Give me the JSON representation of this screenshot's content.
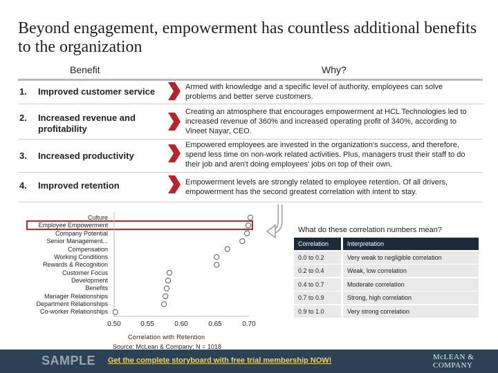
{
  "title": "Beyond engagement, empowerment has countless additional benefits to the organization",
  "headers": {
    "benefit": "Benefit",
    "why": "Why?"
  },
  "benefits": [
    {
      "num": "1.",
      "label": "Improved customer service",
      "why": "Armed with knowledge and a specific level of authority, employees can solve problems and better serve customers."
    },
    {
      "num": "2.",
      "label": "Increased revenue and profitability",
      "why": "Creating an atmosphere that encourages empowerment at HCL Technologies led to increased revenue of 360% and increased operating profit of 340%, according to Vineet Nayar, CEO."
    },
    {
      "num": "3.",
      "label": "Increased productivity",
      "why": "Empowered employees are invested in the organization's success, and therefore, spend less time on non-work related activities. Plus, managers trust their staff to do their job and aren't doing employees' jobs on top of their own."
    },
    {
      "num": "4.",
      "label": "Improved retention",
      "why": "Empowerment levels are strongly related to employee retention. Of all drivers, empowerment has the second greatest correlation with intent to stay."
    }
  ],
  "accent_color": "#b8242b",
  "chart_data": {
    "type": "scatter",
    "categories": [
      "Culture",
      "Employee Empowerment",
      "Company Potential",
      "Senior Management...",
      "Compensation",
      "Working Conditions",
      "Rewards & Recognition",
      "Customer Focus",
      "Development",
      "Benefits",
      "Manager Relationships",
      "Department Relationships",
      "Co-worker Relationships"
    ],
    "values": [
      0.702,
      0.699,
      0.697,
      0.69,
      0.668,
      0.652,
      0.652,
      0.582,
      0.58,
      0.578,
      0.576,
      0.574,
      0.502
    ],
    "xlabel": "Correlation with Retention",
    "xlim": [
      0.5,
      0.7
    ],
    "xticks": [
      "0.50",
      "0.55",
      "0.60",
      "0.65",
      "0.70"
    ],
    "highlighted": "Employee Empowerment",
    "source": "Source: McLean & Company; N = 1018"
  },
  "legend_table": {
    "question": "What do these correlation numbers mean?",
    "headers": [
      "Correlation",
      "Interpretation"
    ],
    "rows": [
      [
        "0.0 to 0.2",
        "Very weak to negligible correlation"
      ],
      [
        "0.2 to 0.4",
        "Weak, low correlation"
      ],
      [
        "0.4 to 0.7",
        "Moderate correlation"
      ],
      [
        "0.7 to 0.9",
        "Strong, high correlation"
      ],
      [
        "0.9 to 1.0",
        "Very strong correlation"
      ]
    ]
  },
  "banner": {
    "sample": "SAMPLE",
    "trial_link": "Get the complete storyboard with free trial membership NOW!",
    "logo_line1": "McLEAN &",
    "logo_line2": "COMPANY"
  }
}
